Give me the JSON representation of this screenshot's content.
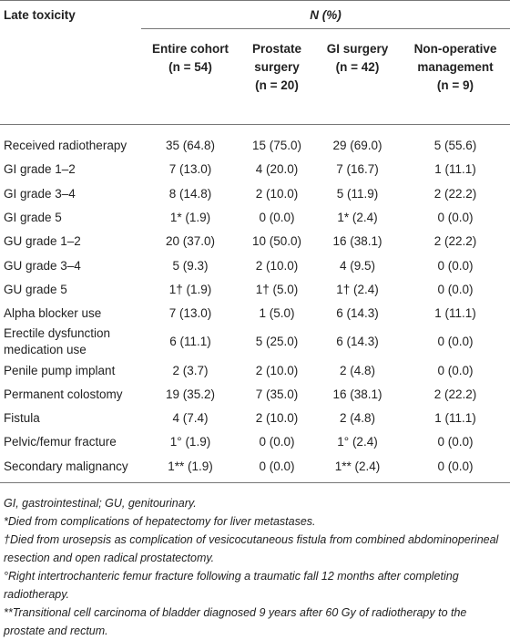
{
  "table": {
    "corner": "Late toxicity",
    "group_header": "N (%)",
    "columns": [
      {
        "name": "Entire cohort",
        "n": "(n = 54)"
      },
      {
        "name": "Prostate surgery",
        "n": "(n = 20)"
      },
      {
        "name": "GI surgery",
        "n": "(n = 42)"
      },
      {
        "name": "Non-operative management",
        "n": "(n = 9)"
      }
    ],
    "rows": [
      [
        "Received radiotherapy",
        "35 (64.8)",
        "15 (75.0)",
        "29 (69.0)",
        "5 (55.6)"
      ],
      [
        "GI grade 1–2",
        "7 (13.0)",
        "4 (20.0)",
        "7 (16.7)",
        "1 (11.1)"
      ],
      [
        "GI grade 3–4",
        "8 (14.8)",
        "2 (10.0)",
        "5 (11.9)",
        "2 (22.2)"
      ],
      [
        "GI grade 5",
        "1* (1.9)",
        "0 (0.0)",
        "1* (2.4)",
        "0 (0.0)"
      ],
      [
        "GU grade 1–2",
        "20 (37.0)",
        "10 (50.0)",
        "16 (38.1)",
        "2 (22.2)"
      ],
      [
        "GU grade 3–4",
        "5 (9.3)",
        "2 (10.0)",
        "4 (9.5)",
        "0 (0.0)"
      ],
      [
        "GU grade 5",
        "1† (1.9)",
        "1† (5.0)",
        "1† (2.4)",
        "0 (0.0)"
      ],
      [
        "Alpha blocker use",
        "7 (13.0)",
        "1 (5.0)",
        "6 (14.3)",
        "1 (11.1)"
      ],
      [
        "Erectile dysfunction medication use",
        "6 (11.1)",
        "5 (25.0)",
        "6 (14.3)",
        "0 (0.0)"
      ],
      [
        "Penile pump implant",
        "2 (3.7)",
        "2 (10.0)",
        "2 (4.8)",
        "0 (0.0)"
      ],
      [
        "Permanent colostomy",
        "19 (35.2)",
        "7 (35.0)",
        "16 (38.1)",
        "2 (22.2)"
      ],
      [
        "Fistula",
        "4 (7.4)",
        "2 (10.0)",
        "2 (4.8)",
        "1 (11.1)"
      ],
      [
        "Pelvic/femur fracture",
        "1° (1.9)",
        "0 (0.0)",
        "1° (2.4)",
        "0 (0.0)"
      ],
      [
        "Secondary malignancy",
        "1** (1.9)",
        "0 (0.0)",
        "1** (2.4)",
        "0 (0.0)"
      ]
    ],
    "footnotes": [
      "GI, gastrointestinal; GU, genitourinary.",
      "*Died from complications of hepatectomy for liver metastases.",
      "†Died from urosepsis as complication of vesicocutaneous fistula from combined abdominoperineal resection and open radical prostatectomy.",
      "°Right intertrochanteric femur fracture following a traumatic fall 12 months after completing radiotherapy.",
      "**Transitional cell carcinoma of bladder diagnosed 9 years after 60 Gy of radiotherapy to the prostate and rectum."
    ]
  }
}
